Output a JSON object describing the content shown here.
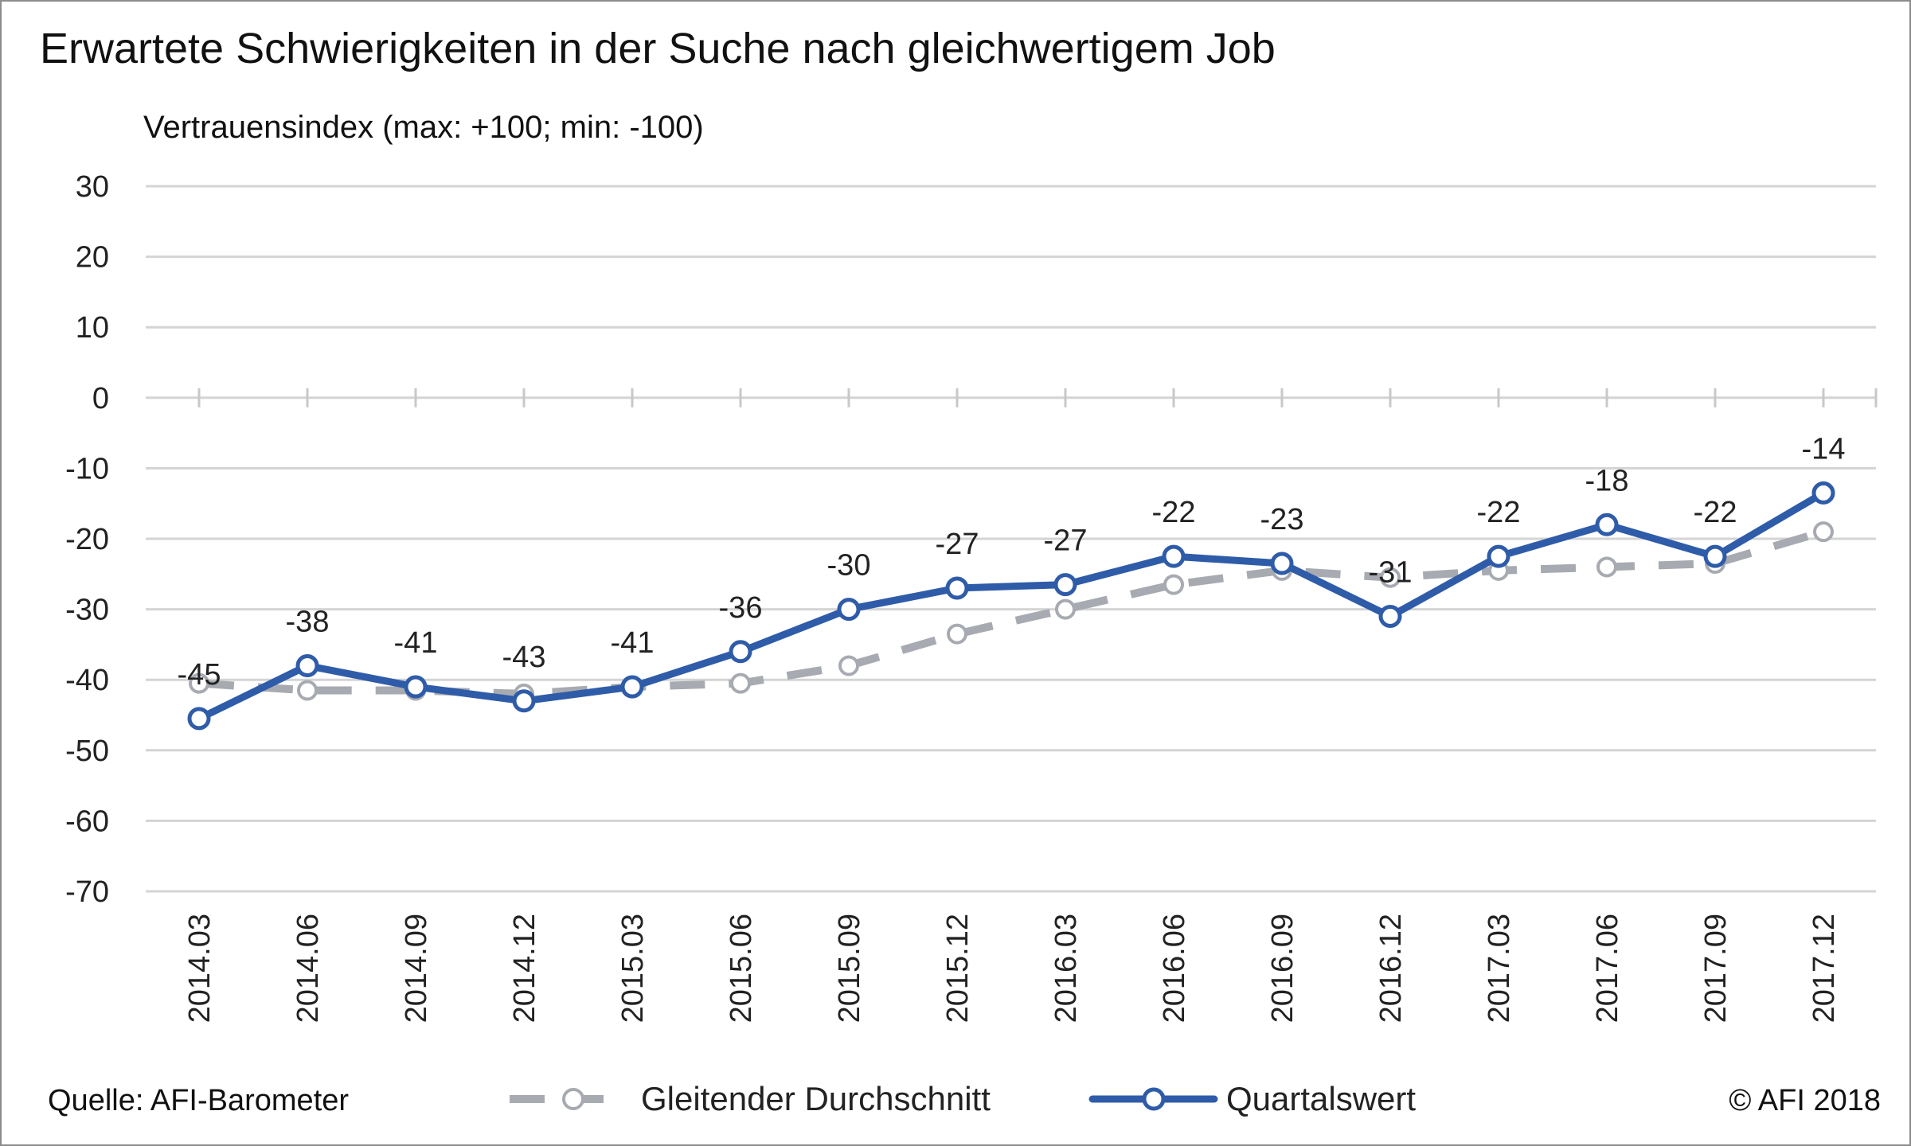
{
  "title": "Erwartete Schwierigkeiten in der Suche nach gleichwertigem Job",
  "subtitle": "Vertrauensindex (max: +100; min: -100)",
  "source": "Quelle: AFI-Barometer",
  "copyright": "© AFI 2018",
  "chart_data": {
    "type": "line",
    "categories": [
      "2014.03",
      "2014.06",
      "2014.09",
      "2014.12",
      "2015.03",
      "2015.06",
      "2015.09",
      "2015.12",
      "2016.03",
      "2016.06",
      "2016.09",
      "2016.12",
      "2017.03",
      "2017.06",
      "2017.09",
      "2017.12"
    ],
    "ylim": [
      -70,
      30
    ],
    "yticks": [
      30,
      20,
      10,
      0,
      -10,
      -20,
      -30,
      -40,
      -50,
      -60,
      -70
    ],
    "grid": true,
    "legend_position": "bottom",
    "series": [
      {
        "name": "Gleitender Durchschnitt",
        "style": "dashed",
        "color": "#a7abb1",
        "values": [
          -40.5,
          -41.5,
          -41.5,
          -42,
          -41,
          -40.5,
          -38,
          -33.5,
          -30,
          -26.5,
          -24.5,
          -25.5,
          -24.5,
          -24,
          -23.5,
          -19
        ]
      },
      {
        "name": "Quartalswert",
        "style": "solid",
        "color": "#2f5ca8",
        "values": [
          -45.5,
          -38,
          -41,
          -43,
          -41,
          -36,
          -30,
          -27,
          -26.5,
          -22.5,
          -23.5,
          -31,
          -22.5,
          -18,
          -22.5,
          -13.5
        ],
        "labels": [
          "-45",
          "-38",
          "-41",
          "-43",
          "-41",
          "-36",
          "-30",
          "-27",
          "-27",
          "-22",
          "-23",
          "-31",
          "-22",
          "-18",
          "-22",
          "-14"
        ]
      }
    ]
  }
}
